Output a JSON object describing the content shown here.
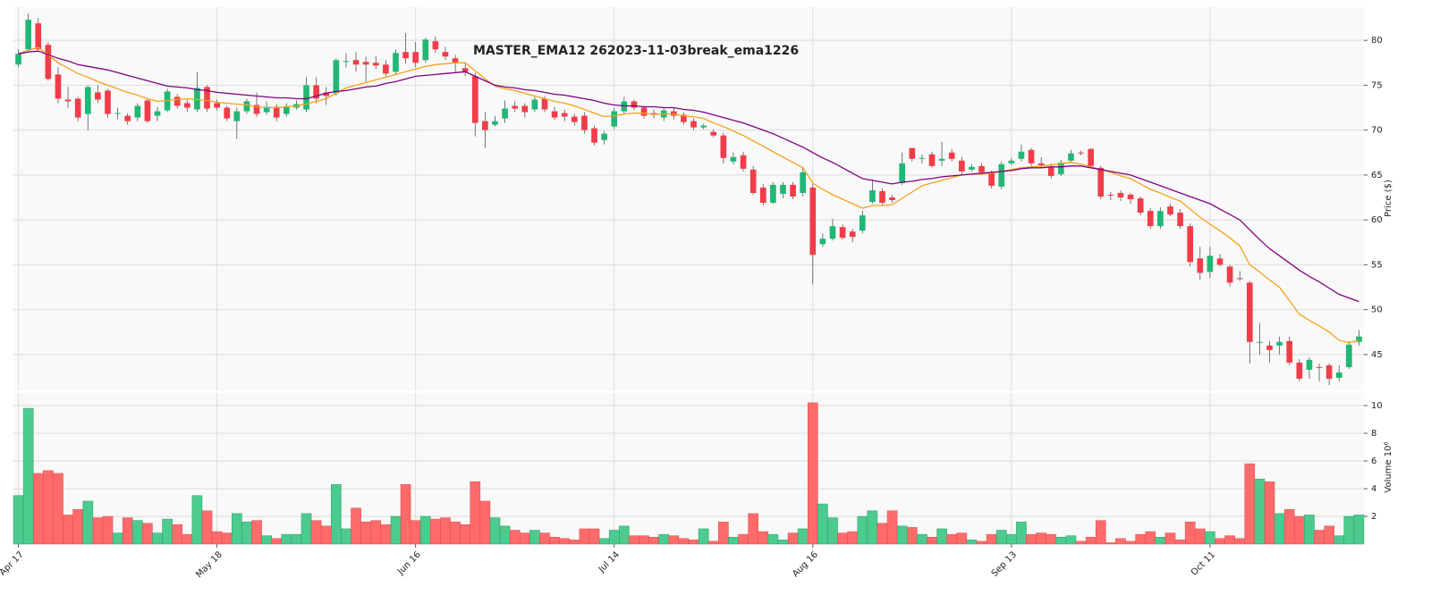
{
  "chart_data": {
    "type": "candlestick",
    "title": "MASTER_EMA12 262023-11-03break_ema1226",
    "ylabel": "Price ($)",
    "categories": [
      "Apr 17",
      null,
      null,
      null,
      null,
      null,
      null,
      null,
      null,
      null,
      null,
      null,
      null,
      null,
      null,
      null,
      null,
      null,
      null,
      null,
      "May 18",
      null,
      null,
      null,
      null,
      null,
      null,
      null,
      null,
      null,
      null,
      null,
      null,
      null,
      null,
      null,
      null,
      null,
      null,
      null,
      "Jun 16",
      null,
      null,
      null,
      null,
      null,
      null,
      null,
      null,
      null,
      null,
      null,
      null,
      null,
      null,
      null,
      null,
      null,
      null,
      null,
      "Jul 14",
      null,
      null,
      null,
      null,
      null,
      null,
      null,
      null,
      null,
      null,
      null,
      null,
      null,
      null,
      null,
      null,
      null,
      null,
      null,
      "Aug 16",
      null,
      null,
      null,
      null,
      null,
      null,
      null,
      null,
      null,
      null,
      null,
      null,
      null,
      null,
      null,
      null,
      null,
      null,
      null,
      "Sep 13",
      null,
      null,
      null,
      null,
      null,
      null,
      null,
      null,
      null,
      null,
      null,
      null,
      null,
      null,
      null,
      null,
      null,
      null,
      null,
      "Oct 11",
      null,
      null,
      null,
      null,
      null,
      null,
      null,
      null,
      null,
      null,
      null,
      null,
      null,
      null,
      null
    ],
    "open": [
      77.3,
      79,
      81.9,
      79.5,
      76.2,
      73.4,
      73.5,
      71.8,
      74.2,
      74.4,
      71.9,
      71.6,
      71.4,
      73.3,
      71.6,
      72.2,
      73.7,
      73,
      72.3,
      74.8,
      73,
      72.5,
      71,
      72.1,
      72.8,
      72,
      72.6,
      71.8,
      72.5,
      72.3,
      75,
      74.2,
      74.1,
      77.7,
      77.8,
      77.6,
      77.5,
      77.3,
      76.5,
      78.7,
      78.7,
      77.8,
      79.9,
      78.7,
      78,
      76.9,
      76,
      71,
      70.6,
      71.3,
      72.7,
      72.7,
      72.3,
      73.5,
      72.1,
      71.9,
      71.5,
      71.6,
      70.2,
      68.9,
      70.4,
      72.1,
      73.2,
      72.5,
      71.9,
      71.4,
      72.1,
      71.7,
      71,
      70.3,
      69.8,
      69.4,
      66.5,
      67.2,
      65.6,
      63.6,
      61.9,
      62.9,
      63.9,
      63,
      63.6,
      57.3,
      57.9,
      59.2,
      58.7,
      58.8,
      62,
      63.2,
      62.5,
      64.1,
      68,
      66.9,
      67.3,
      66.6,
      67.5,
      66.6,
      65.6,
      66,
      65.2,
      63.7,
      66.3,
      66.8,
      67.8,
      66.3,
      65.9,
      65.1,
      66.6,
      67.5,
      67.9,
      65.8,
      62.8,
      63,
      62.8,
      62.4,
      61,
      59.3,
      61.5,
      60.8,
      59.3,
      55.7,
      54.2,
      55.7,
      54.8,
      53.5,
      53,
      46.4,
      46,
      46,
      46.5,
      44.1,
      43.3,
      43.6,
      43.8,
      42.4,
      43.6,
      46.4
    ],
    "high": [
      79,
      83,
      82.5,
      79.8,
      77,
      74.8,
      73.7,
      75,
      75,
      74.6,
      72.5,
      71.9,
      73,
      73.6,
      72.6,
      74.6,
      74,
      73.4,
      76.5,
      75,
      73.4,
      72.7,
      72.5,
      73.5,
      74.2,
      73.2,
      72.9,
      73,
      73.3,
      75.9,
      75.9,
      74.8,
      78,
      78.6,
      78.7,
      78.2,
      78.3,
      77.8,
      79,
      80.8,
      79.8,
      80.3,
      80.4,
      79.3,
      78.4,
      77.5,
      76.4,
      72,
      71.6,
      73.3,
      73.2,
      73,
      73.7,
      73.8,
      72.6,
      72.3,
      71.8,
      72,
      70.5,
      69.9,
      72.5,
      73.7,
      73.4,
      72.7,
      72.3,
      72.5,
      72.5,
      72,
      71.3,
      70.7,
      70.1,
      69.7,
      67.5,
      67.6,
      66,
      64,
      64.2,
      64.2,
      64.2,
      65.9,
      64,
      58.5,
      60.1,
      59.5,
      59,
      61,
      64.5,
      63.5,
      62.8,
      67.5,
      68,
      67.3,
      67.6,
      68.7,
      67.9,
      67,
      66.2,
      66.3,
      65.5,
      66.5,
      66.9,
      68.4,
      68,
      67,
      66.3,
      66.7,
      67.8,
      67.7,
      68,
      66,
      63.1,
      63.3,
      63,
      62.6,
      61.3,
      61.4,
      61.8,
      61.2,
      59.6,
      57,
      57,
      56.2,
      55,
      54.3,
      53.2,
      48.5,
      46.5,
      47,
      47,
      44.5,
      44.7,
      44,
      44,
      43.8,
      46.5,
      47.7
    ],
    "low": [
      77,
      78.8,
      78.9,
      75.5,
      73,
      72.5,
      71,
      70,
      73,
      71.4,
      71.2,
      70.6,
      71,
      70.8,
      71,
      72,
      72.4,
      72,
      72,
      72,
      72.2,
      71,
      69,
      71.8,
      71.5,
      71.7,
      71,
      71.5,
      72.3,
      72,
      73,
      72.8,
      73.8,
      77,
      76.5,
      75.4,
      76.8,
      76,
      76.2,
      77.4,
      77,
      77.5,
      78.6,
      77.8,
      76.5,
      76,
      69.3,
      68,
      70.4,
      70.8,
      72,
      71.4,
      72,
      72,
      71.1,
      71,
      70.5,
      69.6,
      68.3,
      68.4,
      70.1,
      71.8,
      72.2,
      71.3,
      71.3,
      71,
      71.2,
      70.6,
      70,
      70.1,
      69.2,
      66.3,
      66.2,
      65.4,
      62.8,
      61.6,
      61.8,
      62.4,
      62.3,
      62.6,
      52.8,
      57,
      57.7,
      57.8,
      57.5,
      58.5,
      61.8,
      61.6,
      61.9,
      63.9,
      66.5,
      66.3,
      65.8,
      66,
      66.5,
      65,
      65.4,
      65,
      63.5,
      63.4,
      66.1,
      66.5,
      66,
      65.8,
      64.6,
      64.9,
      66.4,
      67.2,
      65.8,
      62.3,
      62.2,
      62.1,
      61.8,
      60.5,
      59,
      59,
      60.4,
      59,
      54.8,
      53.3,
      53.5,
      54.8,
      52.6,
      53.2,
      44,
      45,
      44.1,
      45,
      43.8,
      42,
      42.3,
      42,
      41.6,
      42,
      43.4,
      46
    ],
    "close": [
      78.5,
      82.3,
      79,
      75.7,
      73.5,
      73.2,
      71.4,
      74.8,
      73.4,
      71.8,
      71.9,
      71,
      72.7,
      71,
      72.1,
      74.3,
      72.7,
      72.5,
      74.7,
      72.4,
      72.5,
      71.3,
      72.1,
      73.2,
      71.8,
      72.6,
      71.4,
      72.6,
      72.9,
      75,
      73.5,
      73.8,
      77.8,
      77.7,
      77.3,
      77.3,
      77.2,
      76.3,
      78.6,
      78,
      77.5,
      80.1,
      79,
      78.2,
      77.5,
      76.5,
      70.8,
      70,
      71,
      72.4,
      72.4,
      72,
      73.4,
      72.3,
      71.4,
      71.5,
      70.9,
      70,
      68.6,
      69.6,
      72.1,
      73.2,
      72.5,
      71.6,
      71.7,
      72.2,
      71.6,
      70.9,
      70.3,
      70.5,
      69.4,
      66.9,
      67,
      65.7,
      63,
      61.9,
      63.9,
      63.9,
      62.6,
      65.3,
      56.1,
      57.9,
      59.3,
      58,
      58.1,
      60.5,
      63.3,
      61.9,
      62.2,
      66.3,
      66.8,
      66.9,
      66,
      66.8,
      66.8,
      65.4,
      65.9,
      65.3,
      63.8,
      66.2,
      66.6,
      67.6,
      66.3,
      66.1,
      64.9,
      66.4,
      67.4,
      67.4,
      66,
      62.6,
      62.7,
      62.5,
      62.3,
      60.8,
      59.3,
      61,
      60.6,
      59.3,
      55.3,
      54.1,
      56,
      55,
      53,
      53.4,
      46.4,
      46.4,
      45.5,
      46.4,
      44.1,
      42.3,
      44.4,
      43.5,
      42.3,
      43,
      46.1,
      47
    ],
    "up_color": "#1fb874",
    "down_color": "#f23c48",
    "ema_lines": [
      {
        "color": "#f5a11a",
        "values": [
          78.5,
          78.9,
          79.2,
          78.4,
          77.5,
          76.9,
          76.3,
          75.9,
          75.4,
          75,
          74.6,
          74.2,
          73.9,
          73.5,
          73.2,
          73.3,
          73.4,
          73.5,
          73.4,
          73.3,
          73.1,
          73,
          72.9,
          72.8,
          72.6,
          72.5,
          72.5,
          72.6,
          72.7,
          72.9,
          73.2,
          73.5,
          74.1,
          74.7,
          75,
          75.3,
          75.6,
          75.9,
          76.2,
          76.5,
          76.8,
          77.1,
          77.3,
          77.4,
          77.5,
          77.5,
          76.6,
          75.7,
          74.9,
          74.6,
          74.4,
          74.1,
          73.8,
          73.5,
          73.2,
          73,
          72.7,
          72.3,
          71.9,
          71.5,
          71.6,
          71.8,
          71.9,
          71.9,
          71.8,
          71.8,
          71.8,
          71.6,
          71.5,
          71.3,
          70.8,
          70.4,
          69.9,
          69.4,
          68.8,
          68.2,
          67.6,
          67,
          66.4,
          65.8,
          64.1,
          63.4,
          62.8,
          62.3,
          61.8,
          61.3,
          61.6,
          61.6,
          61.7,
          62.4,
          63.1,
          63.8,
          64.1,
          64.4,
          64.7,
          65,
          65.1,
          65.1,
          65.2,
          65.4,
          65.6,
          65.8,
          65.9,
          66,
          66.1,
          66.3,
          66.4,
          66.2,
          65.9,
          65.6,
          65.3,
          64.9,
          64.6,
          64,
          63.4,
          63,
          62.5,
          62.1,
          61.2,
          60.3,
          59.5,
          58.8,
          58,
          57.1,
          55,
          54.2,
          53.3,
          52.5,
          51,
          49.5,
          48.8,
          48.2,
          47.5,
          46.6,
          46.3,
          46.6
        ]
      },
      {
        "color": "#800080",
        "values": [
          78.5,
          78.7,
          78.8,
          78.4,
          78,
          77.7,
          77.3,
          77.1,
          76.9,
          76.7,
          76.4,
          76.1,
          75.8,
          75.5,
          75.2,
          74.9,
          74.8,
          74.7,
          74.5,
          74.4,
          74.2,
          74.1,
          74,
          73.9,
          73.8,
          73.7,
          73.6,
          73.6,
          73.5,
          73.5,
          73.8,
          74.1,
          74.3,
          74.4,
          74.6,
          74.8,
          74.9,
          75.2,
          75.4,
          75.7,
          76,
          76.1,
          76.2,
          76.3,
          76.4,
          76.5,
          76,
          75.5,
          75,
          74.8,
          74.7,
          74.5,
          74.4,
          74.2,
          74,
          73.9,
          73.7,
          73.5,
          73.3,
          73,
          72.8,
          72.7,
          72.7,
          72.6,
          72.6,
          72.5,
          72.5,
          72.3,
          72.2,
          72,
          71.7,
          71.4,
          71.1,
          70.8,
          70.4,
          70,
          69.6,
          69.1,
          68.6,
          68.1,
          67.5,
          66.9,
          66.4,
          65.8,
          65.2,
          64.6,
          64.4,
          64.2,
          64,
          64.2,
          64.3,
          64.5,
          64.6,
          64.8,
          64.9,
          65,
          65.1,
          65.2,
          65.3,
          65.4,
          65.5,
          65.7,
          65.8,
          65.8,
          65.9,
          65.9,
          66,
          66,
          65.8,
          65.6,
          65.4,
          65.2,
          65,
          64.6,
          64.2,
          63.8,
          63.4,
          63,
          62.6,
          62.2,
          61.8,
          61.2,
          60.6,
          60,
          58.9,
          57.8,
          56.8,
          56,
          55.2,
          54.4,
          53.7,
          53.1,
          52.4,
          51.7,
          51.3,
          50.9
        ]
      }
    ],
    "ylim": [
      41,
      83.7
    ],
    "yticks": [
      45,
      50,
      55,
      60,
      65,
      70,
      75,
      80
    ],
    "grid": true,
    "volume": {
      "ylabel": "Volume  10⁶",
      "values": [
        3.5,
        9.8,
        5.1,
        5.3,
        5.1,
        2.1,
        2.5,
        3.1,
        1.9,
        2,
        0.8,
        1.9,
        1.7,
        1.5,
        0.8,
        1.8,
        1.4,
        0.7,
        3.5,
        2.4,
        0.9,
        0.8,
        2.2,
        1.6,
        1.7,
        0.6,
        0.4,
        0.7,
        0.7,
        2.2,
        1.7,
        1.3,
        4.3,
        1.1,
        2.6,
        1.6,
        1.7,
        1.4,
        2,
        4.3,
        1.7,
        2,
        1.8,
        1.9,
        1.6,
        1.4,
        4.5,
        3.1,
        1.9,
        1.3,
        1,
        0.8,
        1,
        0.8,
        0.5,
        0.4,
        0.3,
        1.1,
        1.1,
        0.4,
        1,
        1.3,
        0.6,
        0.6,
        0.5,
        0.7,
        0.6,
        0.4,
        0.3,
        1.1,
        0.2,
        1.6,
        0.5,
        0.7,
        2.2,
        0.9,
        0.7,
        0.3,
        0.8,
        1.1,
        10.2,
        2.9,
        1.9,
        0.8,
        0.9,
        2,
        2.4,
        1.5,
        2.4,
        1.3,
        1.2,
        0.7,
        0.5,
        1.1,
        0.7,
        0.8,
        0.3,
        0.2,
        0.7,
        1,
        0.7,
        1.6,
        0.7,
        0.8,
        0.7,
        0.5,
        0.6,
        0.2,
        0.5,
        1.7,
        0.1,
        0.4,
        0.2,
        0.7,
        0.9,
        0.5,
        0.8,
        0.3,
        1.6,
        1.1,
        0.9,
        0.4,
        0.6,
        0.4,
        5.8,
        4.7,
        4.5,
        2.2,
        2.5,
        2,
        2.1,
        1,
        1.3,
        0.6,
        2,
        2.1
      ],
      "up_color": "#4ccb8f",
      "down_color": "#ff6b6b",
      "ylim": [
        0,
        10.9
      ],
      "yticks": [
        2,
        4,
        6,
        8,
        10
      ]
    }
  }
}
